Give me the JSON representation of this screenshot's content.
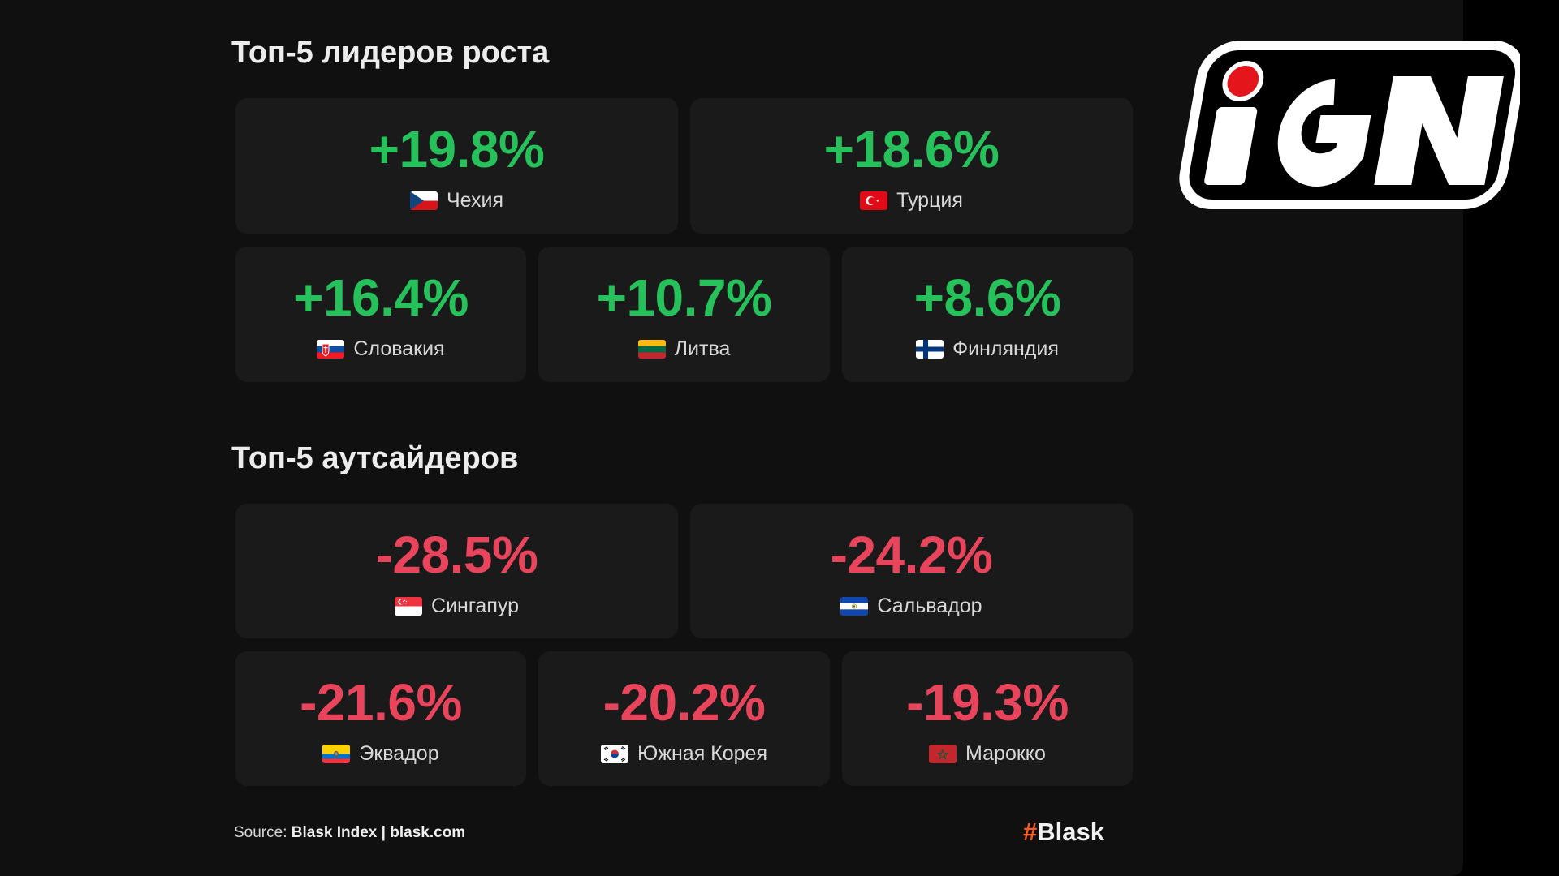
{
  "chart_data": {
    "type": "table",
    "sections": [
      {
        "title": "Топ-5 лидеров роста",
        "rows": [
          {
            "value": "+19.8%",
            "country": "Чехия",
            "flag": "cz"
          },
          {
            "value": "+18.6%",
            "country": "Турция",
            "flag": "tr"
          },
          {
            "value": "+16.4%",
            "country": "Словакия",
            "flag": "sk"
          },
          {
            "value": "+10.7%",
            "country": "Литва",
            "flag": "lt"
          },
          {
            "value": "+8.6%",
            "country": "Финляндия",
            "flag": "fi"
          }
        ]
      },
      {
        "title": "Топ-5 аутсайдеров",
        "rows": [
          {
            "value": "-28.5%",
            "country": "Сингапур",
            "flag": "sg"
          },
          {
            "value": "-24.2%",
            "country": "Сальвадор",
            "flag": "sv"
          },
          {
            "value": "-21.6%",
            "country": "Эквадор",
            "flag": "ec"
          },
          {
            "value": "-20.2%",
            "country": "Южная Корея",
            "flag": "kr"
          },
          {
            "value": "-19.3%",
            "country": "Марокко",
            "flag": "ma"
          }
        ]
      }
    ]
  },
  "colors": {
    "positive": "#27c15c",
    "negative": "#e8445c",
    "card": "#1a1a1a",
    "background": "#101010",
    "brand_accent": "#ff5a1f",
    "ign_red": "#e4161c"
  },
  "footer": {
    "source_label": "Source:",
    "source_name": "Blask Index",
    "separator": "|",
    "source_url": "blask.com",
    "brand_hash": "#",
    "brand_name": "Blask"
  },
  "watermark": {
    "logo": "ign-logo",
    "text": "iGN"
  }
}
